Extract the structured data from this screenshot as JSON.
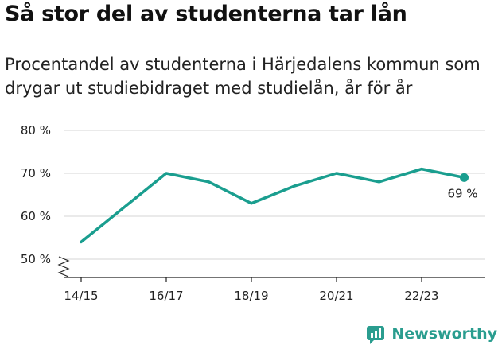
{
  "header": {
    "title": "Så stor del av studenterna tar lån",
    "subtitle": "Procentandel av studenterna i Härjedalens kommun som drygar ut studiebidraget med studielån, år för år"
  },
  "brand": {
    "name": "Newsworthy",
    "color": "#2a9d8f"
  },
  "chart_data": {
    "type": "line",
    "title": "Så stor del av studenterna tar lån",
    "subtitle": "Procentandel av studenterna i Härjedalens kommun som drygar ut studiebidraget med studielån, år för år",
    "x": [
      "14/15",
      "15/16",
      "16/17",
      "17/18",
      "18/19",
      "19/20",
      "20/21",
      "21/22",
      "22/23",
      "23/24"
    ],
    "x_tick_labels": [
      "14/15",
      "16/17",
      "18/19",
      "20/21",
      "22/23"
    ],
    "series": [
      {
        "values": [
          54,
          62,
          70,
          68,
          63,
          67,
          70,
          68,
          71,
          69
        ],
        "color": "#1a9e8f"
      }
    ],
    "ylim": [
      50,
      80
    ],
    "y_ticks": [
      50,
      60,
      70,
      80
    ],
    "y_tick_labels": [
      "50 %",
      "60 %",
      "70 %",
      "80 %"
    ],
    "axis_break": true,
    "grid": true,
    "end_label": "69 %",
    "xlabel": "",
    "ylabel": ""
  }
}
